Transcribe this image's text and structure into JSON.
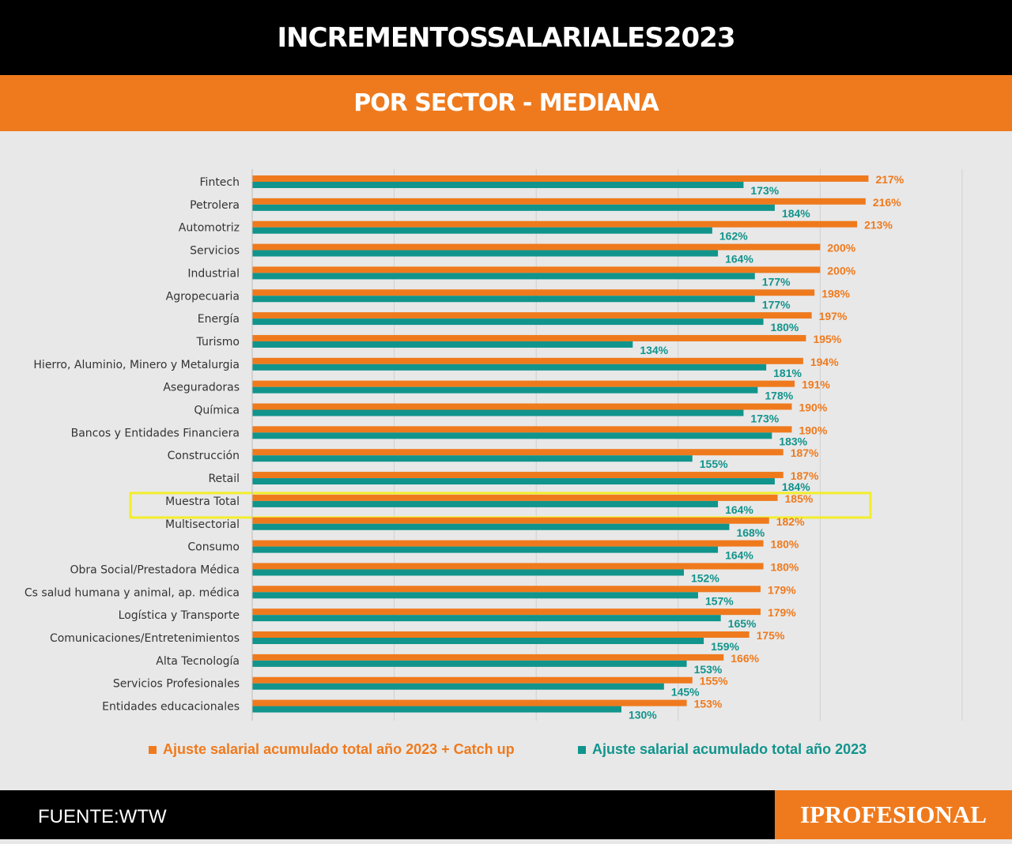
{
  "header": {
    "title": "INCREMENTOSSALARIALES2023",
    "subtitle": "POR SECTOR - MEDIANA"
  },
  "colors": {
    "accent_orange": "#ef7a1d",
    "accent_teal": "#11948c",
    "highlight": "#f2ee2b",
    "bar_dark": "#000000"
  },
  "chart_data": {
    "type": "bar",
    "orientation": "horizontal",
    "categories": [
      "Fintech",
      "Petrolera",
      "Automotriz",
      "Servicios",
      "Industrial",
      "Agropecuaria",
      "Energía",
      "Turismo",
      "Hierro, Aluminio, Minero y Metalurgia",
      "Aseguradoras",
      "Química",
      "Bancos y Entidades Financiera",
      "Construcción",
      "Retail",
      "Muestra Total",
      "Multisectorial",
      "Consumo",
      "Obra Social/Prestadora Médica",
      "Cs salud humana y animal, ap. médica",
      "Logística y Transporte",
      "Comunicaciones/Entretenimientos",
      "Alta Tecnología",
      "Servicios Profesionales",
      "Entidades educacionales"
    ],
    "series": [
      {
        "name": "Ajuste salarial acumulado total año 2023 + Catch up",
        "color": "#ef7a1d",
        "values": [
          217,
          216,
          213,
          200,
          200,
          198,
          197,
          195,
          194,
          191,
          190,
          190,
          187,
          187,
          185,
          182,
          180,
          180,
          179,
          179,
          175,
          166,
          155,
          153
        ]
      },
      {
        "name": "Ajuste salarial acumulado total año 2023",
        "color": "#11948c",
        "values": [
          173,
          184,
          162,
          164,
          177,
          177,
          180,
          134,
          181,
          178,
          173,
          183,
          155,
          184,
          164,
          168,
          164,
          152,
          157,
          165,
          159,
          153,
          145,
          130
        ]
      }
    ],
    "value_suffix": "%",
    "highlighted_category": "Muestra Total",
    "xlim": [
      0,
      250
    ],
    "grid": true,
    "legend_position": "bottom"
  },
  "footer": {
    "source": "FUENTE:WTW",
    "brand": "IPROFESIONAL"
  }
}
